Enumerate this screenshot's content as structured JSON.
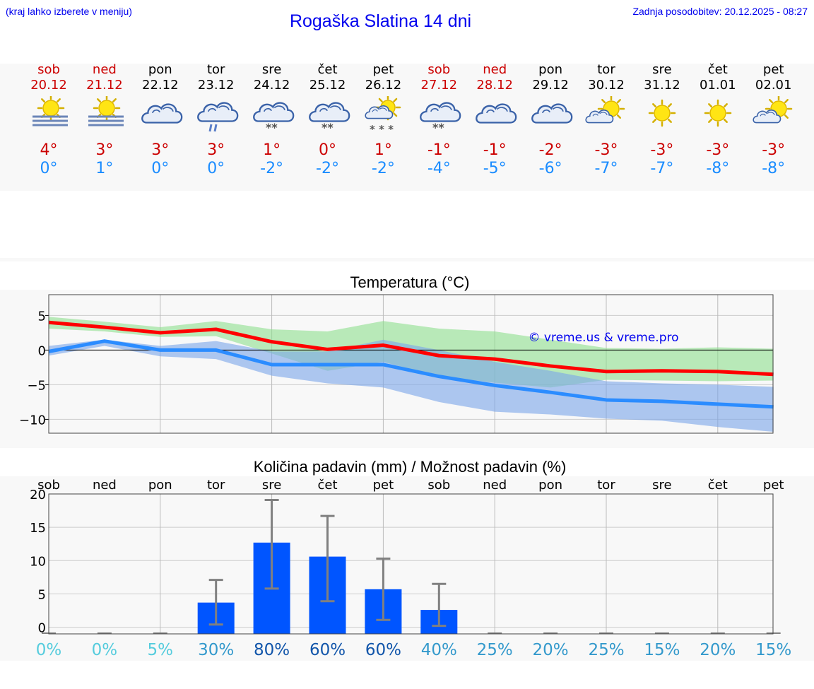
{
  "header": {
    "note": "(kraj lahko izberete v meniju)",
    "title": "Rogaška Slatina 14 dni",
    "updated": "Zadnja posodobitev: 20.12.2025 - 08:27"
  },
  "days": [
    {
      "name": "sob",
      "date": "20.12",
      "weekend": true,
      "icon": "sun-fog-icon",
      "max": "4°",
      "min": "0°"
    },
    {
      "name": "ned",
      "date": "21.12",
      "weekend": true,
      "icon": "sun-fog-icon",
      "max": "3°",
      "min": "1°"
    },
    {
      "name": "pon",
      "date": "22.12",
      "weekend": false,
      "icon": "cloud-icon",
      "max": "3°",
      "min": "0°"
    },
    {
      "name": "tor",
      "date": "23.12",
      "weekend": false,
      "icon": "cloud-rain-icon",
      "max": "3°",
      "min": "0°"
    },
    {
      "name": "sre",
      "date": "24.12",
      "weekend": false,
      "icon": "cloud-snow-icon",
      "max": "1°",
      "min": "-2°"
    },
    {
      "name": "čet",
      "date": "25.12",
      "weekend": false,
      "icon": "cloud-snow-icon",
      "max": "0°",
      "min": "-2°"
    },
    {
      "name": "pet",
      "date": "26.12",
      "weekend": false,
      "icon": "sun-cloud-snow-icon",
      "max": "1°",
      "min": "-2°"
    },
    {
      "name": "sob",
      "date": "27.12",
      "weekend": true,
      "icon": "cloud-snow-icon",
      "max": "-1°",
      "min": "-4°"
    },
    {
      "name": "ned",
      "date": "28.12",
      "weekend": true,
      "icon": "cloud-icon",
      "max": "-1°",
      "min": "-5°"
    },
    {
      "name": "pon",
      "date": "29.12",
      "weekend": false,
      "icon": "cloud-icon",
      "max": "-2°",
      "min": "-6°"
    },
    {
      "name": "tor",
      "date": "30.12",
      "weekend": false,
      "icon": "sun-cloud-icon",
      "max": "-3°",
      "min": "-7°"
    },
    {
      "name": "sre",
      "date": "31.12",
      "weekend": false,
      "icon": "sun-icon",
      "max": "-3°",
      "min": "-7°"
    },
    {
      "name": "čet",
      "date": "01.01",
      "weekend": false,
      "icon": "sun-icon",
      "max": "-3°",
      "min": "-8°"
    },
    {
      "name": "pet",
      "date": "02.01",
      "weekend": false,
      "icon": "sun-cloud-icon",
      "max": "-3°",
      "min": "-8°"
    }
  ],
  "chart_data": [
    {
      "type": "line",
      "title": "Temperatura (°C)",
      "watermark": "© vreme.us & vreme.pro",
      "x": [
        0,
        1,
        2,
        3,
        4,
        5,
        6,
        7,
        8,
        9,
        10,
        11,
        12,
        13
      ],
      "ylim": [
        -12,
        8
      ],
      "yticks": [
        5,
        0,
        -5,
        -10
      ],
      "ytick_labels": [
        "5",
        "0",
        "−5",
        "−10"
      ],
      "grid": true,
      "series": [
        {
          "name": "max",
          "color": "#ff0000",
          "values": [
            4,
            3.3,
            2.5,
            3,
            1.2,
            0.1,
            0.7,
            -0.8,
            -1.3,
            -2.3,
            -3.1,
            -3,
            -3.1,
            -3.5
          ]
        },
        {
          "name": "min",
          "color": "#2b8cff",
          "values": [
            -0.2,
            1.3,
            0,
            0,
            -2.1,
            -2.1,
            -2.1,
            -3.8,
            -5.1,
            -6.1,
            -7.2,
            -7.4,
            -7.8,
            -8.2
          ]
        }
      ],
      "bands": [
        {
          "name": "max-range",
          "color": "#8ee08e",
          "upper": [
            4.8,
            4.1,
            3.3,
            4.2,
            3,
            2.7,
            4.2,
            3.1,
            2.7,
            1.5,
            0.3,
            0.2,
            0.4,
            0.2
          ],
          "lower": [
            3.1,
            2.7,
            1.9,
            2,
            -0.5,
            -3,
            -1.7,
            -3.8,
            -4.7,
            -5.4,
            -4.3,
            -4.4,
            -4.5,
            -4.4
          ]
        },
        {
          "name": "min-range",
          "color": "#7aa5ea",
          "upper": [
            0.6,
            1.5,
            0.6,
            1.3,
            -0.2,
            -0.2,
            1.5,
            0,
            -1.7,
            -3,
            -4.5,
            -4.8,
            -5,
            -5.3
          ],
          "lower": [
            -0.8,
            0.6,
            -0.9,
            -1.3,
            -3.7,
            -4.8,
            -5.4,
            -7.5,
            -8.9,
            -9.3,
            -9.9,
            -10.2,
            -11.1,
            -11.8
          ]
        }
      ]
    },
    {
      "type": "bar",
      "title": "Količina padavin (mm) / Možnost padavin (%)",
      "categories": [
        "sob",
        "ned",
        "pon",
        "tor",
        "sre",
        "čet",
        "pet",
        "sob",
        "ned",
        "pon",
        "tor",
        "sre",
        "čet",
        "pet"
      ],
      "values": [
        0,
        0,
        0,
        3.7,
        12.7,
        10.6,
        5.7,
        2.6,
        0,
        0,
        0,
        0,
        0,
        0
      ],
      "err_low": [
        0,
        0,
        0,
        0.4,
        5.8,
        3.9,
        1.1,
        0.2,
        0,
        0,
        0,
        0,
        0,
        0
      ],
      "err_high": [
        0,
        0,
        0,
        7.1,
        19.1,
        16.7,
        10.3,
        6.5,
        0,
        0,
        0,
        0,
        0,
        0
      ],
      "ylim": [
        -1,
        20
      ],
      "yticks": [
        20,
        15,
        10,
        5,
        0
      ],
      "ytick_labels": [
        "20",
        "15",
        "10",
        "5",
        "0"
      ],
      "bar_color": "#0055ff",
      "probability": [
        "0%",
        "0%",
        "5%",
        "30%",
        "80%",
        "60%",
        "60%",
        "40%",
        "25%",
        "20%",
        "25%",
        "15%",
        "20%",
        "15%"
      ],
      "probability_colors": [
        "#55ccdd",
        "#55ccdd",
        "#55ccdd",
        "#3399cc",
        "#1155aa",
        "#1155aa",
        "#1155aa",
        "#3399cc",
        "#3399cc",
        "#3399cc",
        "#3399cc",
        "#3399cc",
        "#3399cc",
        "#3399cc"
      ]
    }
  ]
}
